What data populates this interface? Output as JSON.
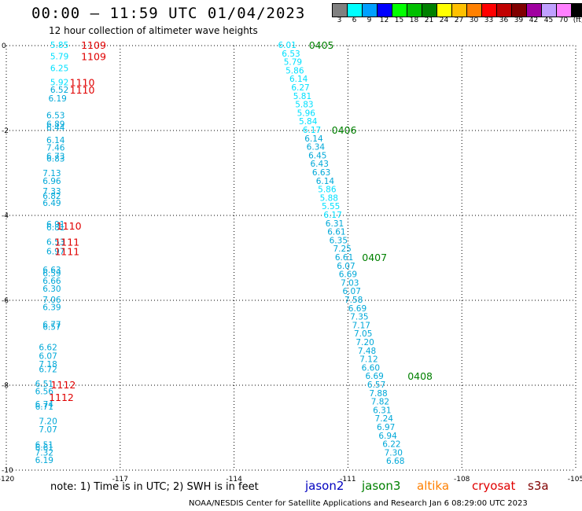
{
  "title": "00:00 – 11:59 UTC 01/04/2023",
  "subtitle": "12 hour collection of altimeter wave heights",
  "legend": {
    "colors": [
      "#808080",
      "#00ffff",
      "#00a0ff",
      "#0000ff",
      "#00ff00",
      "#00c000",
      "#008000",
      "#ffff00",
      "#ffc000",
      "#ff8000",
      "#ff0000",
      "#c00000",
      "#800000",
      "#a000a0",
      "#c0a0ff",
      "#ff80ff",
      "#000000"
    ],
    "labels": [
      "3",
      "6",
      "9",
      "12",
      "15",
      "18",
      "21",
      "24",
      "27",
      "30",
      "33",
      "36",
      "39",
      "42",
      "45",
      "70",
      "(ft)"
    ]
  },
  "note": "note:  1) Time is in UTC;  2) SWH is in feet",
  "satellites": [
    {
      "name": "jason2",
      "color": "#0000c0"
    },
    {
      "name": "jason3",
      "color": "#008000"
    },
    {
      "name": "altika",
      "color": "#ff8000"
    },
    {
      "name": "cryosat",
      "color": "#e00000"
    },
    {
      "name": "s3a",
      "color": "#800000"
    }
  ],
  "footer": "NOAA/NESDIS Center for Satellite Applications and Research   Jan  6 08:29:00 UTC 2023",
  "chart_data": {
    "type": "scatter",
    "xlim": [
      -120,
      -105
    ],
    "ylim": [
      -10,
      0
    ],
    "x_ticks": [
      "-120",
      "-117",
      "-114",
      "-111",
      "-108",
      "-105"
    ],
    "y_ticks": [
      "0",
      "-2",
      "-4",
      "-6",
      "-8",
      "-10"
    ],
    "grid": true,
    "series": [
      {
        "color": "#00e0ff",
        "points": [
          {
            "x": -118.6,
            "y": 0.0,
            "label": "5.85"
          },
          {
            "x": -118.6,
            "y": -0.27,
            "label": "5.79"
          },
          {
            "x": -118.6,
            "y": -0.55,
            "label": "6.25"
          },
          {
            "x": -118.6,
            "y": -0.88,
            "label": "5.92"
          }
        ]
      },
      {
        "color": "#00a8d8",
        "points": [
          {
            "x": -118.6,
            "y": -1.06,
            "label": "6.52"
          },
          {
            "x": -118.65,
            "y": -1.26,
            "label": "6.19"
          },
          {
            "x": -118.7,
            "y": -1.66,
            "label": "6.53"
          },
          {
            "x": -118.7,
            "y": -1.86,
            "label": "6.89"
          },
          {
            "x": -118.7,
            "y": -1.94,
            "label": "6.44"
          },
          {
            "x": -118.7,
            "y": -2.24,
            "label": "6.14"
          },
          {
            "x": -118.7,
            "y": -2.42,
            "label": "7.46"
          },
          {
            "x": -118.7,
            "y": -2.62,
            "label": "6.73"
          },
          {
            "x": -118.7,
            "y": -2.68,
            "label": "6.83"
          },
          {
            "x": -118.8,
            "y": -3.02,
            "label": "7.13"
          },
          {
            "x": -118.8,
            "y": -3.2,
            "label": "6.96"
          },
          {
            "x": -118.8,
            "y": -3.44,
            "label": "7.33"
          },
          {
            "x": -118.8,
            "y": -3.56,
            "label": "6.82"
          },
          {
            "x": -118.8,
            "y": -3.72,
            "label": "6.49"
          },
          {
            "x": -118.7,
            "y": -4.22,
            "label": "6.91"
          },
          {
            "x": -118.7,
            "y": -4.3,
            "label": "6.81"
          },
          {
            "x": -118.7,
            "y": -4.64,
            "label": "6.53"
          },
          {
            "x": -118.7,
            "y": -4.86,
            "label": "6.97"
          },
          {
            "x": -118.8,
            "y": -5.3,
            "label": "6.63"
          },
          {
            "x": -118.8,
            "y": -5.38,
            "label": "6.59"
          },
          {
            "x": -118.8,
            "y": -5.56,
            "label": "6.66"
          },
          {
            "x": -118.8,
            "y": -5.74,
            "label": "6.30"
          },
          {
            "x": -118.8,
            "y": -6.0,
            "label": "7.06"
          },
          {
            "x": -118.8,
            "y": -6.18,
            "label": "6.39"
          },
          {
            "x": -118.8,
            "y": -6.58,
            "label": "6.77"
          },
          {
            "x": -118.8,
            "y": -6.64,
            "label": "6.57"
          },
          {
            "x": -118.9,
            "y": -7.12,
            "label": "6.62"
          },
          {
            "x": -118.9,
            "y": -7.32,
            "label": "6.07"
          },
          {
            "x": -118.9,
            "y": -7.52,
            "label": "7.18"
          },
          {
            "x": -118.9,
            "y": -7.64,
            "label": "6.72"
          },
          {
            "x": -119.0,
            "y": -7.98,
            "label": "6.51"
          },
          {
            "x": -119.0,
            "y": -8.16,
            "label": "6.56"
          },
          {
            "x": -119.0,
            "y": -8.46,
            "label": "6.74"
          },
          {
            "x": -119.0,
            "y": -8.52,
            "label": "6.71"
          },
          {
            "x": -118.9,
            "y": -8.86,
            "label": "7.20"
          },
          {
            "x": -118.9,
            "y": -9.06,
            "label": "7.07"
          },
          {
            "x": -119.0,
            "y": -9.42,
            "label": "6.51"
          },
          {
            "x": -119.0,
            "y": -9.48,
            "label": "6.61"
          },
          {
            "x": -119.0,
            "y": -9.6,
            "label": "7.32"
          },
          {
            "x": -119.0,
            "y": -9.78,
            "label": "6.19"
          }
        ]
      },
      {
        "color": "#00e0ff",
        "points": [
          {
            "x": -112.6,
            "y": 0.0,
            "label": "6.01"
          },
          {
            "x": -112.5,
            "y": -0.2,
            "label": "6.53"
          },
          {
            "x": -112.45,
            "y": -0.4,
            "label": "5.79"
          },
          {
            "x": -112.4,
            "y": -0.6,
            "label": "5.86"
          },
          {
            "x": -112.3,
            "y": -0.8,
            "label": "6.14"
          },
          {
            "x": -112.25,
            "y": -1.0,
            "label": "6.27"
          },
          {
            "x": -112.2,
            "y": -1.2,
            "label": "5.81"
          },
          {
            "x": -112.15,
            "y": -1.4,
            "label": "5.83"
          },
          {
            "x": -112.1,
            "y": -1.6,
            "label": "5.96"
          },
          {
            "x": -112.05,
            "y": -1.8,
            "label": "5.84"
          },
          {
            "x": -111.95,
            "y": -2.0,
            "label": "6.17"
          }
        ]
      },
      {
        "color": "#00a8d8",
        "points": [
          {
            "x": -111.9,
            "y": -2.2,
            "label": "6.14"
          },
          {
            "x": -111.85,
            "y": -2.4,
            "label": "6.34"
          },
          {
            "x": -111.8,
            "y": -2.6,
            "label": "6.45"
          },
          {
            "x": -111.75,
            "y": -2.8,
            "label": "6.43"
          },
          {
            "x": -111.7,
            "y": -3.0,
            "label": "6.63"
          },
          {
            "x": -111.6,
            "y": -3.2,
            "label": "6.14"
          }
        ]
      },
      {
        "color": "#00e0ff",
        "points": [
          {
            "x": -111.55,
            "y": -3.4,
            "label": "5.86"
          },
          {
            "x": -111.5,
            "y": -3.6,
            "label": "5.88"
          },
          {
            "x": -111.45,
            "y": -3.8,
            "label": "5.55"
          },
          {
            "x": -111.4,
            "y": -4.0,
            "label": "6.17"
          }
        ]
      },
      {
        "color": "#00a8d8",
        "points": [
          {
            "x": -111.35,
            "y": -4.2,
            "label": "6.31"
          },
          {
            "x": -111.3,
            "y": -4.4,
            "label": "6.61"
          },
          {
            "x": -111.25,
            "y": -4.6,
            "label": "6.35"
          },
          {
            "x": -111.15,
            "y": -4.8,
            "label": "7.25"
          },
          {
            "x": -111.1,
            "y": -5.0,
            "label": "6.61"
          },
          {
            "x": -111.05,
            "y": -5.2,
            "label": "6.07"
          },
          {
            "x": -111.0,
            "y": -5.4,
            "label": "6.69"
          },
          {
            "x": -110.95,
            "y": -5.6,
            "label": "7.03"
          },
          {
            "x": -110.9,
            "y": -5.8,
            "label": "6.07"
          },
          {
            "x": -110.85,
            "y": -6.0,
            "label": "7.58"
          },
          {
            "x": -110.75,
            "y": -6.2,
            "label": "6.69"
          },
          {
            "x": -110.7,
            "y": -6.4,
            "label": "7.35"
          },
          {
            "x": -110.65,
            "y": -6.6,
            "label": "7.17"
          },
          {
            "x": -110.6,
            "y": -6.8,
            "label": "7.05"
          },
          {
            "x": -110.55,
            "y": -7.0,
            "label": "7.20"
          },
          {
            "x": -110.5,
            "y": -7.2,
            "label": "7.48"
          },
          {
            "x": -110.45,
            "y": -7.4,
            "label": "7.12"
          },
          {
            "x": -110.4,
            "y": -7.6,
            "label": "6.60"
          },
          {
            "x": -110.3,
            "y": -7.8,
            "label": "6.69"
          },
          {
            "x": -110.25,
            "y": -8.0,
            "label": "6.57"
          },
          {
            "x": -110.2,
            "y": -8.2,
            "label": "7.88"
          },
          {
            "x": -110.15,
            "y": -8.4,
            "label": "7.82"
          },
          {
            "x": -110.1,
            "y": -8.6,
            "label": "6.31"
          },
          {
            "x": -110.05,
            "y": -8.8,
            "label": "7.24"
          },
          {
            "x": -110.0,
            "y": -9.0,
            "label": "6.97"
          },
          {
            "x": -109.95,
            "y": -9.2,
            "label": "6.94"
          },
          {
            "x": -109.85,
            "y": -9.4,
            "label": "6.22"
          },
          {
            "x": -109.8,
            "y": -9.6,
            "label": "7.30"
          },
          {
            "x": -109.75,
            "y": -9.8,
            "label": "6.68"
          }
        ]
      }
    ],
    "time_labels": [
      {
        "x": -117.7,
        "y": 0.0,
        "label": "1109",
        "color": "#e00000"
      },
      {
        "x": -117.7,
        "y": -0.27,
        "label": "1109",
        "color": "#e00000"
      },
      {
        "x": -118.0,
        "y": -0.88,
        "label": "1110",
        "color": "#e00000"
      },
      {
        "x": -118.0,
        "y": -1.06,
        "label": "1110",
        "color": "#e00000"
      },
      {
        "x": -118.35,
        "y": -4.26,
        "label": "1110",
        "color": "#e00000"
      },
      {
        "x": -118.4,
        "y": -4.64,
        "label": "1111",
        "color": "#e00000"
      },
      {
        "x": -118.4,
        "y": -4.86,
        "label": "1111",
        "color": "#e00000"
      },
      {
        "x": -118.5,
        "y": -8.0,
        "label": "1112",
        "color": "#e00000"
      },
      {
        "x": -118.55,
        "y": -8.3,
        "label": "1112",
        "color": "#e00000"
      },
      {
        "x": -111.7,
        "y": 0.0,
        "label": "0405",
        "color": "#008000"
      },
      {
        "x": -111.1,
        "y": -2.0,
        "label": "0406",
        "color": "#008000"
      },
      {
        "x": -110.3,
        "y": -5.0,
        "label": "0407",
        "color": "#008000"
      },
      {
        "x": -109.1,
        "y": -7.8,
        "label": "0408",
        "color": "#008000"
      }
    ]
  }
}
